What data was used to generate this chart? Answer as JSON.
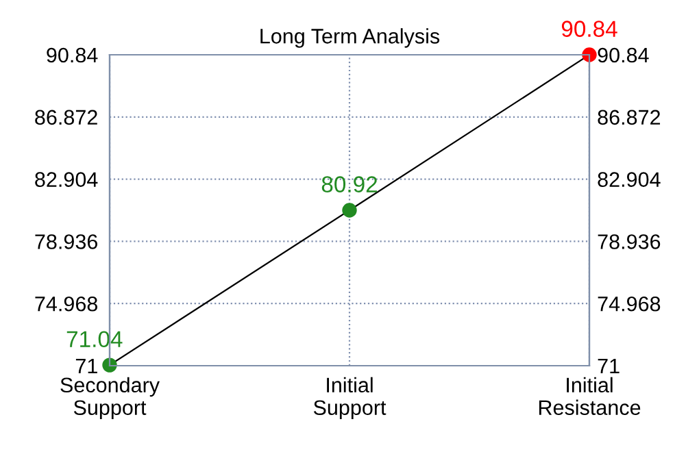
{
  "chart_data": {
    "type": "line",
    "title": "Long Term Analysis",
    "categories": [
      "Secondary\nSupport",
      "Initial\nSupport",
      "Initial\nResistance"
    ],
    "series": [
      {
        "color": "#000000",
        "colors": [
          "#228b22",
          "#228b22",
          "#ff0000"
        ],
        "values": [
          71.04,
          80.92,
          90.84
        ]
      }
    ],
    "ylim": [
      71,
      90.84
    ],
    "yticks": [
      71,
      74.968,
      78.936,
      82.904,
      86.872,
      90.84
    ],
    "y2lim": [
      71,
      90.84
    ],
    "y2ticks": [
      71,
      74.968,
      78.936,
      82.904,
      86.872,
      90.84
    ],
    "grid": true,
    "marker": "circle",
    "line_style": "solid",
    "data_labels": true,
    "legend": false
  }
}
